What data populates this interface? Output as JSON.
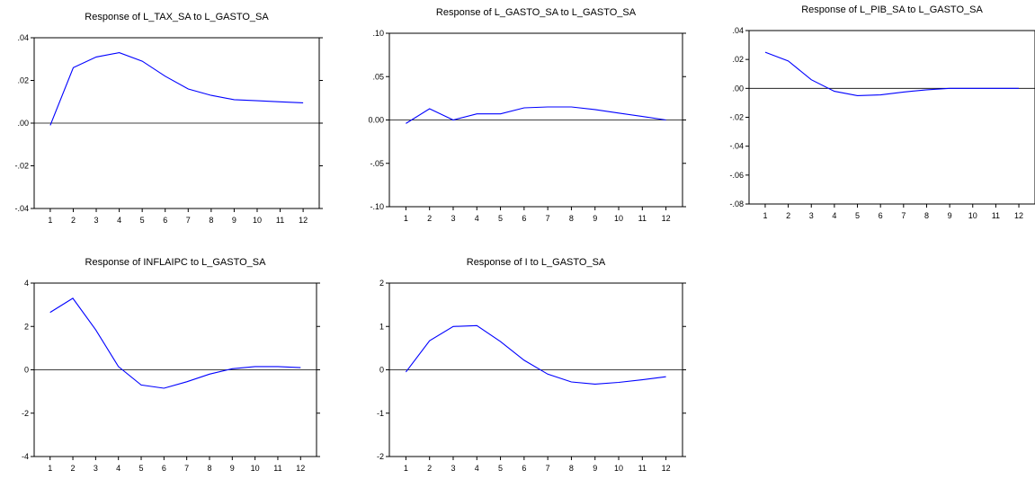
{
  "colors": {
    "line": "#0000ff",
    "axis": "#000000",
    "zero_line": "#000000",
    "background": "#ffffff"
  },
  "chart_data": [
    {
      "type": "line",
      "title": "Response of L_TAX_SA to  L_GASTO_SA",
      "x": [
        1,
        2,
        3,
        4,
        5,
        6,
        7,
        8,
        9,
        10,
        11,
        12
      ],
      "x_tick_labels": [
        "1",
        "2",
        "3",
        "4",
        "5",
        "6",
        "7",
        "8",
        "9",
        "10",
        "11",
        "12"
      ],
      "y_ticks": [
        0.04,
        0.02,
        0.0,
        -0.02,
        -0.04
      ],
      "y_tick_labels": [
        ".04",
        ".02",
        ".00",
        "-.02",
        "-.04"
      ],
      "ylim": [
        -0.04,
        0.04
      ],
      "zero_line": true,
      "grid": false,
      "series": [
        {
          "values": [
            -0.001,
            0.026,
            0.031,
            0.033,
            0.029,
            0.022,
            0.016,
            0.013,
            0.011,
            0.0105,
            0.01,
            0.0095
          ]
        }
      ]
    },
    {
      "type": "line",
      "title": "Response of L_GASTO_SA to  L_GASTO_SA",
      "x": [
        1,
        2,
        3,
        4,
        5,
        6,
        7,
        8,
        9,
        10,
        11,
        12
      ],
      "x_tick_labels": [
        "1",
        "2",
        "3",
        "4",
        "5",
        "6",
        "7",
        "8",
        "9",
        "10",
        "11",
        "12"
      ],
      "y_ticks": [
        0.1,
        0.05,
        0.0,
        -0.05,
        -0.1
      ],
      "y_tick_labels": [
        ".10",
        ".05",
        "0.00",
        "-.05",
        "-.10"
      ],
      "ylim": [
        -0.1,
        0.1
      ],
      "zero_line": true,
      "grid": false,
      "series": [
        {
          "values": [
            -0.004,
            0.013,
            0.0,
            0.007,
            0.007,
            0.014,
            0.015,
            0.015,
            0.012,
            0.008,
            0.004,
            0.0
          ]
        }
      ]
    },
    {
      "type": "line",
      "title": "Response of L_PIB_SA to L_GASTO_SA",
      "x": [
        1,
        2,
        3,
        4,
        5,
        6,
        7,
        8,
        9,
        10,
        11,
        12
      ],
      "x_tick_labels": [
        "1",
        "2",
        "3",
        "4",
        "5",
        "6",
        "7",
        "8",
        "9",
        "10",
        "11",
        "12"
      ],
      "y_ticks": [
        0.04,
        0.02,
        0.0,
        -0.02,
        -0.04,
        -0.06,
        -0.08
      ],
      "y_tick_labels": [
        ".04",
        ".02",
        ".00",
        "-.02",
        "-.04",
        "-.06",
        "-.08"
      ],
      "ylim": [
        -0.08,
        0.04
      ],
      "zero_line": true,
      "grid": false,
      "series": [
        {
          "values": [
            0.025,
            0.019,
            0.006,
            -0.002,
            -0.005,
            -0.0045,
            -0.0025,
            -0.001,
            0.0,
            0.0,
            0.0,
            0.0
          ]
        }
      ]
    },
    {
      "type": "line",
      "title": "Response of INFLAIPC to  L_GASTO_SA",
      "x": [
        1,
        2,
        3,
        4,
        5,
        6,
        7,
        8,
        9,
        10,
        11,
        12
      ],
      "x_tick_labels": [
        "1",
        "2",
        "3",
        "4",
        "5",
        "6",
        "7",
        "8",
        "9",
        "10",
        "11",
        "12"
      ],
      "y_ticks": [
        4,
        2,
        0,
        -2,
        -4
      ],
      "y_tick_labels": [
        "4",
        "2",
        "0",
        "-2",
        "-4"
      ],
      "ylim": [
        -4,
        4
      ],
      "zero_line": true,
      "grid": false,
      "series": [
        {
          "values": [
            2.65,
            3.3,
            1.85,
            0.15,
            -0.7,
            -0.85,
            -0.55,
            -0.2,
            0.05,
            0.15,
            0.15,
            0.1
          ]
        }
      ]
    },
    {
      "type": "line",
      "title": "Response of I to  L_GASTO_SA",
      "x": [
        1,
        2,
        3,
        4,
        5,
        6,
        7,
        8,
        9,
        10,
        11,
        12
      ],
      "x_tick_labels": [
        "1",
        "2",
        "3",
        "4",
        "5",
        "6",
        "7",
        "8",
        "9",
        "10",
        "11",
        "12"
      ],
      "y_ticks": [
        2,
        1,
        0,
        -1,
        -2
      ],
      "y_tick_labels": [
        "2",
        "1",
        "0",
        "-1",
        "-2"
      ],
      "ylim": [
        -2,
        2
      ],
      "zero_line": true,
      "grid": false,
      "series": [
        {
          "values": [
            -0.05,
            0.67,
            1.0,
            1.02,
            0.65,
            0.22,
            -0.1,
            -0.28,
            -0.33,
            -0.29,
            -0.23,
            -0.16
          ]
        }
      ]
    }
  ]
}
